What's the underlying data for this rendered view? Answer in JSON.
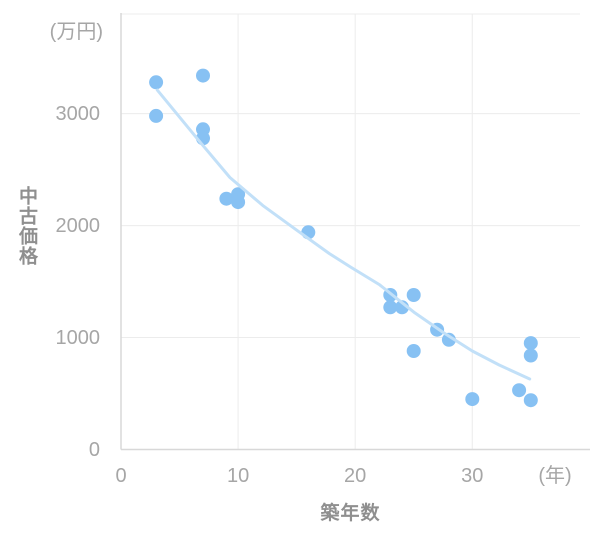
{
  "chart_data": {
    "type": "scatter",
    "title": "",
    "x_axis": {
      "label": "築年数",
      "unit": "(年)",
      "ticks": [
        0,
        10,
        20,
        30
      ],
      "range": [
        0,
        39.2
      ],
      "grid": true
    },
    "y_axis": {
      "label": "中古価格",
      "unit": "(万円)",
      "ticks": [
        0,
        1000,
        2000,
        3000
      ],
      "range": [
        0,
        3890
      ],
      "grid": true
    },
    "legend": "none",
    "points": [
      [
        3,
        3280
      ],
      [
        3,
        2980
      ],
      [
        7,
        3340
      ],
      [
        7,
        2860
      ],
      [
        7,
        2780
      ],
      [
        9,
        2240
      ],
      [
        10,
        2280
      ],
      [
        10,
        2210
      ],
      [
        16,
        1940
      ],
      [
        23,
        1380
      ],
      [
        23,
        1270
      ],
      [
        24,
        1270
      ],
      [
        25,
        1380
      ],
      [
        25,
        880
      ],
      [
        27,
        1070
      ],
      [
        28,
        980
      ],
      [
        30,
        450
      ],
      [
        34,
        530
      ],
      [
        35,
        950
      ],
      [
        35,
        840
      ],
      [
        35,
        440
      ]
    ],
    "trend_line": [
      [
        3.1,
        3210
      ],
      [
        6.8,
        2740
      ],
      [
        9.3,
        2430
      ],
      [
        12.1,
        2180
      ],
      [
        15.0,
        1960
      ],
      [
        17.8,
        1750
      ],
      [
        19.6,
        1630
      ],
      [
        22.1,
        1470
      ],
      [
        25.1,
        1220
      ],
      [
        27.6,
        1040
      ],
      [
        30.0,
        880
      ],
      [
        32.3,
        755
      ],
      [
        34.9,
        630
      ]
    ]
  },
  "colors": {
    "point": "#87c1f3",
    "trend": "#c2e0f8",
    "grid": "#ececec",
    "axis": "#d8d8d8",
    "tick_text": "#a6a6a6",
    "axis_title_text": "#8f8f8f",
    "background": "#ffffff"
  }
}
